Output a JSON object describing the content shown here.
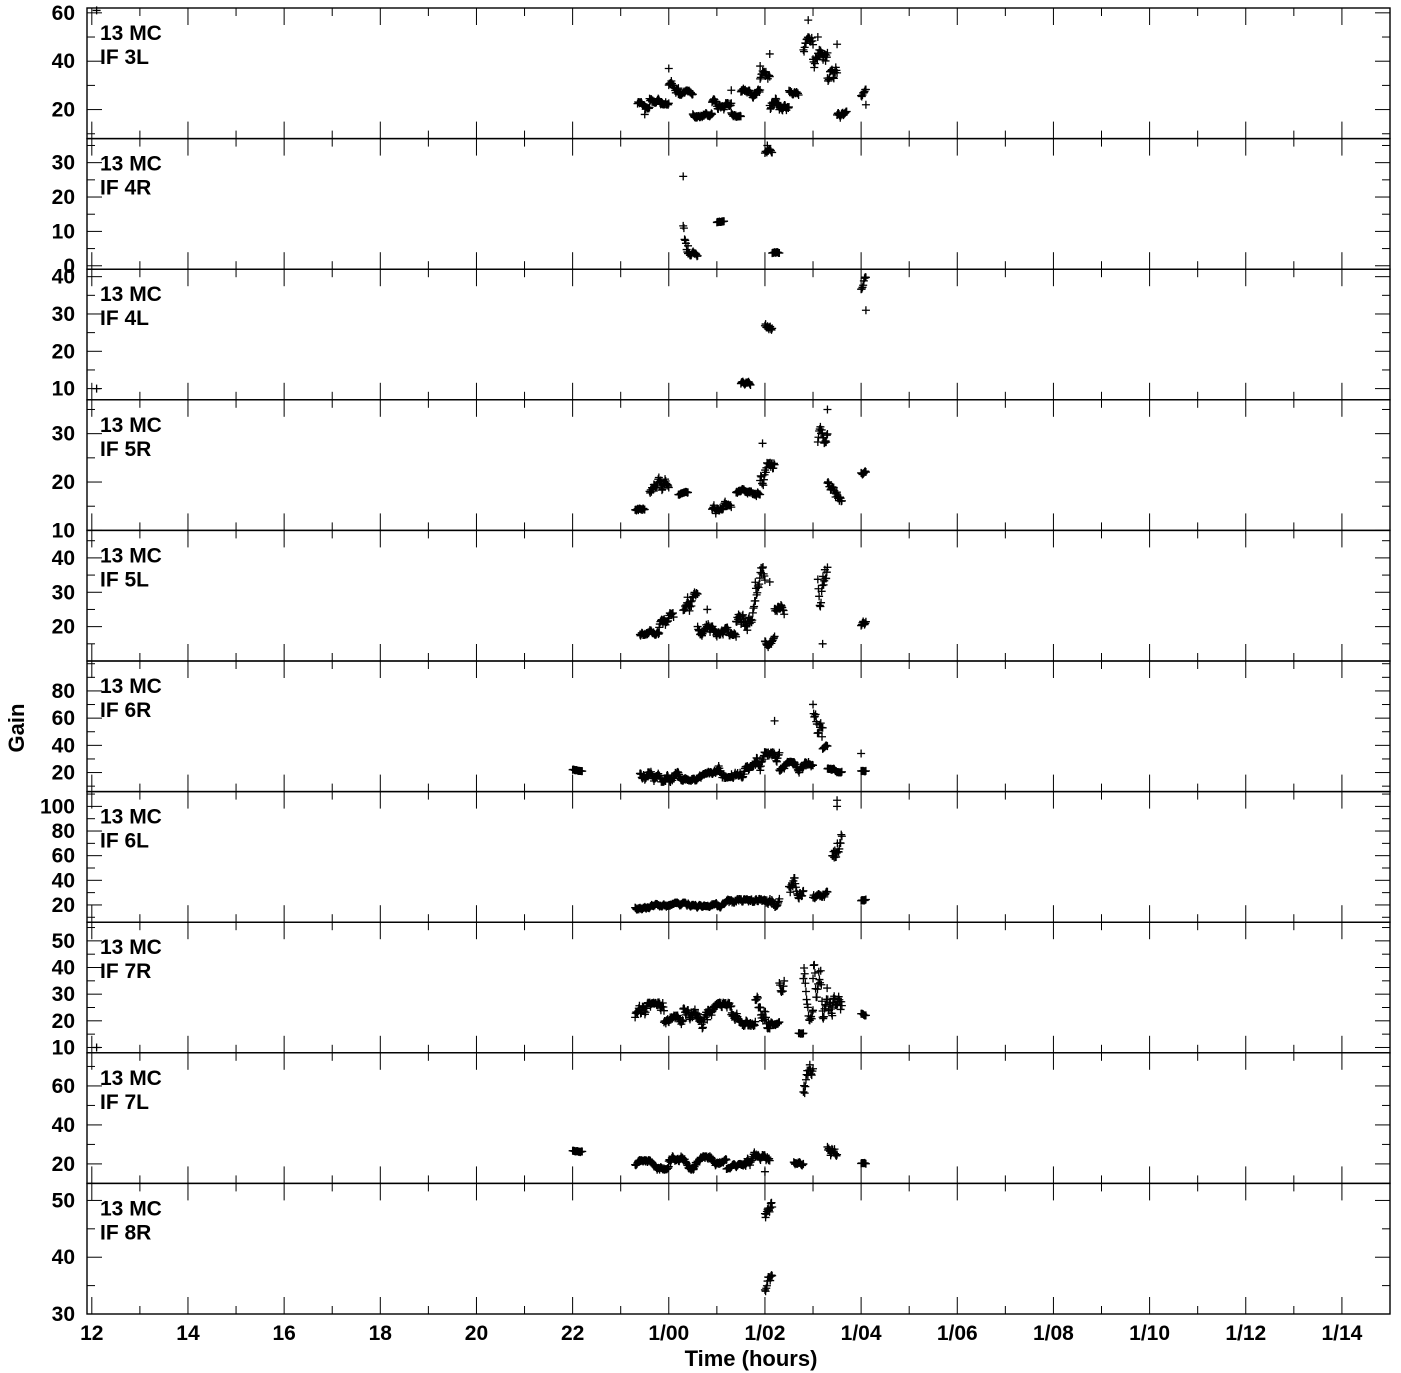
{
  "figure": {
    "title": "",
    "xlabel": "Time (hours)",
    "ylabel": "Gain",
    "x_tick_labels": [
      "12",
      "14",
      "16",
      "18",
      "20",
      "22",
      "1/00",
      "1/02",
      "1/04",
      "1/06",
      "1/08",
      "1/10",
      "1/12",
      "1/14"
    ]
  },
  "chart_data": {
    "type": "scatter",
    "marker": "+",
    "x_unit": "hours",
    "xlim": [
      11.9,
      39.0
    ],
    "x_ticks": [
      12,
      14,
      16,
      18,
      20,
      22,
      24,
      26,
      28,
      30,
      32,
      34,
      36,
      38
    ],
    "x_minor_step": 1,
    "panels": [
      {
        "label1": "13 MC",
        "label2": "IF 3L",
        "ylim": [
          8,
          62
        ],
        "yticks": [
          20,
          40,
          60
        ],
        "yminor_step": 10,
        "segments": [
          [
            23.35,
            23.6,
            20,
            26
          ],
          [
            23.6,
            24.0,
            22,
            28
          ],
          [
            24.0,
            24.2,
            26,
            33
          ],
          [
            24.2,
            24.5,
            25,
            28
          ],
          [
            24.5,
            24.9,
            16,
            20
          ],
          [
            24.9,
            25.3,
            20,
            26
          ],
          [
            25.3,
            25.5,
            17,
            21
          ],
          [
            25.5,
            25.9,
            24,
            29
          ],
          [
            25.9,
            26.1,
            26,
            36
          ],
          [
            26.1,
            26.3,
            14,
            26
          ],
          [
            26.3,
            26.5,
            16,
            22
          ],
          [
            26.5,
            26.7,
            26,
            31
          ],
          [
            26.8,
            27.0,
            38,
            50
          ],
          [
            27.0,
            27.3,
            32,
            48
          ],
          [
            27.3,
            27.5,
            24,
            40
          ],
          [
            27.5,
            27.7,
            15,
            21
          ],
          [
            28.0,
            28.1,
            24,
            29
          ]
        ],
        "outliers": [
          [
            12.1,
            61
          ],
          [
            23.5,
            18
          ],
          [
            24.0,
            37
          ],
          [
            25.3,
            28
          ],
          [
            25.9,
            38
          ],
          [
            26.1,
            43
          ],
          [
            26.9,
            57
          ],
          [
            27.1,
            50
          ],
          [
            27.5,
            47
          ],
          [
            28.1,
            22
          ]
        ]
      },
      {
        "label1": "13 MC",
        "label2": "IF 4R",
        "ylim": [
          -1,
          37
        ],
        "yticks": [
          0,
          10,
          20,
          30
        ],
        "yminor_step": 5,
        "segments": [
          [
            24.3,
            24.4,
            4,
            25
          ],
          [
            24.4,
            24.6,
            2,
            5
          ],
          [
            25.0,
            25.15,
            12,
            13
          ],
          [
            26.0,
            26.15,
            31,
            34
          ],
          [
            26.15,
            26.3,
            3,
            4
          ]
        ],
        "outliers": [
          [
            24.3,
            26
          ],
          [
            26.05,
            35
          ]
        ]
      },
      {
        "label1": "13 MC",
        "label2": "IF 4L",
        "ylim": [
          7,
          42
        ],
        "yticks": [
          10,
          20,
          30,
          40
        ],
        "yminor_step": 5,
        "segments": [
          [
            25.5,
            25.7,
            10,
            12
          ],
          [
            26.0,
            26.15,
            25,
            30
          ],
          [
            28.0,
            28.1,
            33,
            40
          ]
        ],
        "outliers": [
          [
            12.1,
            10
          ],
          [
            28.1,
            31
          ]
        ]
      },
      {
        "label1": "13 MC",
        "label2": "IF 5R",
        "ylim": [
          10,
          37
        ],
        "yticks": [
          10,
          20,
          30
        ],
        "yminor_step": 5,
        "segments": [
          [
            23.3,
            23.5,
            13,
            15
          ],
          [
            23.6,
            24.0,
            15,
            21
          ],
          [
            24.2,
            24.4,
            17,
            18
          ],
          [
            24.9,
            25.3,
            12,
            16
          ],
          [
            25.4,
            25.6,
            17,
            19
          ],
          [
            25.6,
            25.9,
            16,
            19
          ],
          [
            25.9,
            26.2,
            16,
            24
          ],
          [
            27.1,
            27.3,
            25,
            34
          ],
          [
            27.3,
            27.6,
            16,
            22
          ],
          [
            28.0,
            28.1,
            21,
            23
          ]
        ],
        "outliers": [
          [
            25.95,
            28
          ],
          [
            27.3,
            35
          ]
        ]
      },
      {
        "label1": "13 MC",
        "label2": "IF 5L",
        "ylim": [
          10,
          48
        ],
        "yticks": [
          20,
          30,
          40
        ],
        "yminor_step": 5,
        "segments": [
          [
            23.4,
            23.8,
            16,
            19
          ],
          [
            23.8,
            24.1,
            17,
            24
          ],
          [
            24.3,
            24.6,
            20,
            30
          ],
          [
            24.6,
            25.0,
            16,
            22
          ],
          [
            25.0,
            25.4,
            15,
            20
          ],
          [
            25.4,
            25.8,
            15,
            28
          ],
          [
            25.8,
            26.0,
            28,
            40
          ],
          [
            26.0,
            26.2,
            14,
            18
          ],
          [
            26.2,
            26.4,
            20,
            28
          ],
          [
            27.1,
            27.3,
            25,
            44
          ],
          [
            28.0,
            28.1,
            19,
            22
          ]
        ],
        "outliers": [
          [
            24.8,
            25
          ],
          [
            26.1,
            33
          ],
          [
            27.2,
            15
          ]
        ]
      },
      {
        "label1": "13 MC",
        "label2": "IF 6R",
        "ylim": [
          6,
          102
        ],
        "yticks": [
          20,
          40,
          60,
          80
        ],
        "yminor_step": 10,
        "segments": [
          [
            22.0,
            22.2,
            21,
            23
          ],
          [
            23.4,
            24.2,
            13,
            27
          ],
          [
            24.2,
            25.0,
            14,
            22
          ],
          [
            25.0,
            25.8,
            16,
            30
          ],
          [
            25.8,
            26.3,
            17,
            35
          ],
          [
            26.3,
            26.8,
            16,
            28
          ],
          [
            26.8,
            27.0,
            18,
            30
          ],
          [
            27.0,
            27.2,
            40,
            88
          ],
          [
            27.2,
            27.3,
            35,
            40
          ],
          [
            27.3,
            27.6,
            20,
            26
          ],
          [
            28.0,
            28.1,
            20,
            22
          ]
        ],
        "outliers": [
          [
            26.2,
            58
          ],
          [
            28.0,
            34
          ]
        ]
      },
      {
        "label1": "13 MC",
        "label2": "IF 6L",
        "ylim": [
          6,
          112
        ],
        "yticks": [
          20,
          40,
          60,
          80,
          100
        ],
        "yminor_step": 10,
        "segments": [
          [
            23.3,
            24.0,
            15,
            21
          ],
          [
            24.0,
            25.0,
            16,
            22
          ],
          [
            25.0,
            26.0,
            15,
            25
          ],
          [
            26.0,
            26.3,
            17,
            30
          ],
          [
            26.5,
            26.8,
            18,
            45
          ],
          [
            27.0,
            27.3,
            20,
            32
          ],
          [
            27.4,
            27.6,
            40,
            85
          ],
          [
            28.0,
            28.1,
            22,
            25
          ]
        ],
        "outliers": [
          [
            27.5,
            105
          ],
          [
            27.5,
            100
          ]
        ]
      },
      {
        "label1": "13 MC",
        "label2": "IF 7R",
        "ylim": [
          8,
          57
        ],
        "yticks": [
          10,
          20,
          30,
          40,
          50
        ],
        "yminor_step": 5,
        "segments": [
          [
            23.3,
            23.9,
            17,
            27
          ],
          [
            23.9,
            24.3,
            16,
            22
          ],
          [
            24.3,
            24.8,
            17,
            29
          ],
          [
            24.8,
            25.3,
            18,
            27
          ],
          [
            25.3,
            25.8,
            18,
            26
          ],
          [
            25.8,
            26.1,
            17,
            38
          ],
          [
            26.1,
            26.3,
            17,
            22
          ],
          [
            26.3,
            26.4,
            27,
            40
          ],
          [
            26.7,
            26.8,
            15,
            16
          ],
          [
            26.8,
            27.0,
            20,
            47
          ],
          [
            27.0,
            27.2,
            17,
            53
          ],
          [
            27.2,
            27.4,
            15,
            40
          ],
          [
            27.4,
            27.6,
            13,
            31
          ],
          [
            28.0,
            28.1,
            22,
            24
          ]
        ],
        "outliers": [
          [
            12.1,
            10
          ]
        ]
      },
      {
        "label1": "13 MC",
        "label2": "IF 7L",
        "ylim": [
          10,
          77
        ],
        "yticks": [
          20,
          40,
          60
        ],
        "yminor_step": 10,
        "segments": [
          [
            22.0,
            22.2,
            26,
            28
          ],
          [
            23.3,
            24.0,
            17,
            22
          ],
          [
            24.0,
            24.6,
            17,
            24
          ],
          [
            24.6,
            25.2,
            18,
            24
          ],
          [
            25.2,
            25.6,
            16,
            20
          ],
          [
            25.6,
            26.1,
            17,
            26
          ],
          [
            26.6,
            26.8,
            19,
            23
          ],
          [
            26.8,
            27.0,
            49,
            72
          ],
          [
            27.3,
            27.5,
            22,
            36
          ],
          [
            28.0,
            28.1,
            19,
            21
          ]
        ],
        "outliers": [
          [
            26.0,
            16
          ]
        ]
      },
      {
        "label1": "13 MC",
        "label2": "IF 8R",
        "ylim": [
          30,
          53
        ],
        "yticks": [
          30,
          40,
          50
        ],
        "yminor_step": 5,
        "segments": [
          [
            26.0,
            26.15,
            46,
            51
          ],
          [
            26.0,
            26.15,
            32,
            37
          ]
        ],
        "outliers": []
      }
    ]
  }
}
